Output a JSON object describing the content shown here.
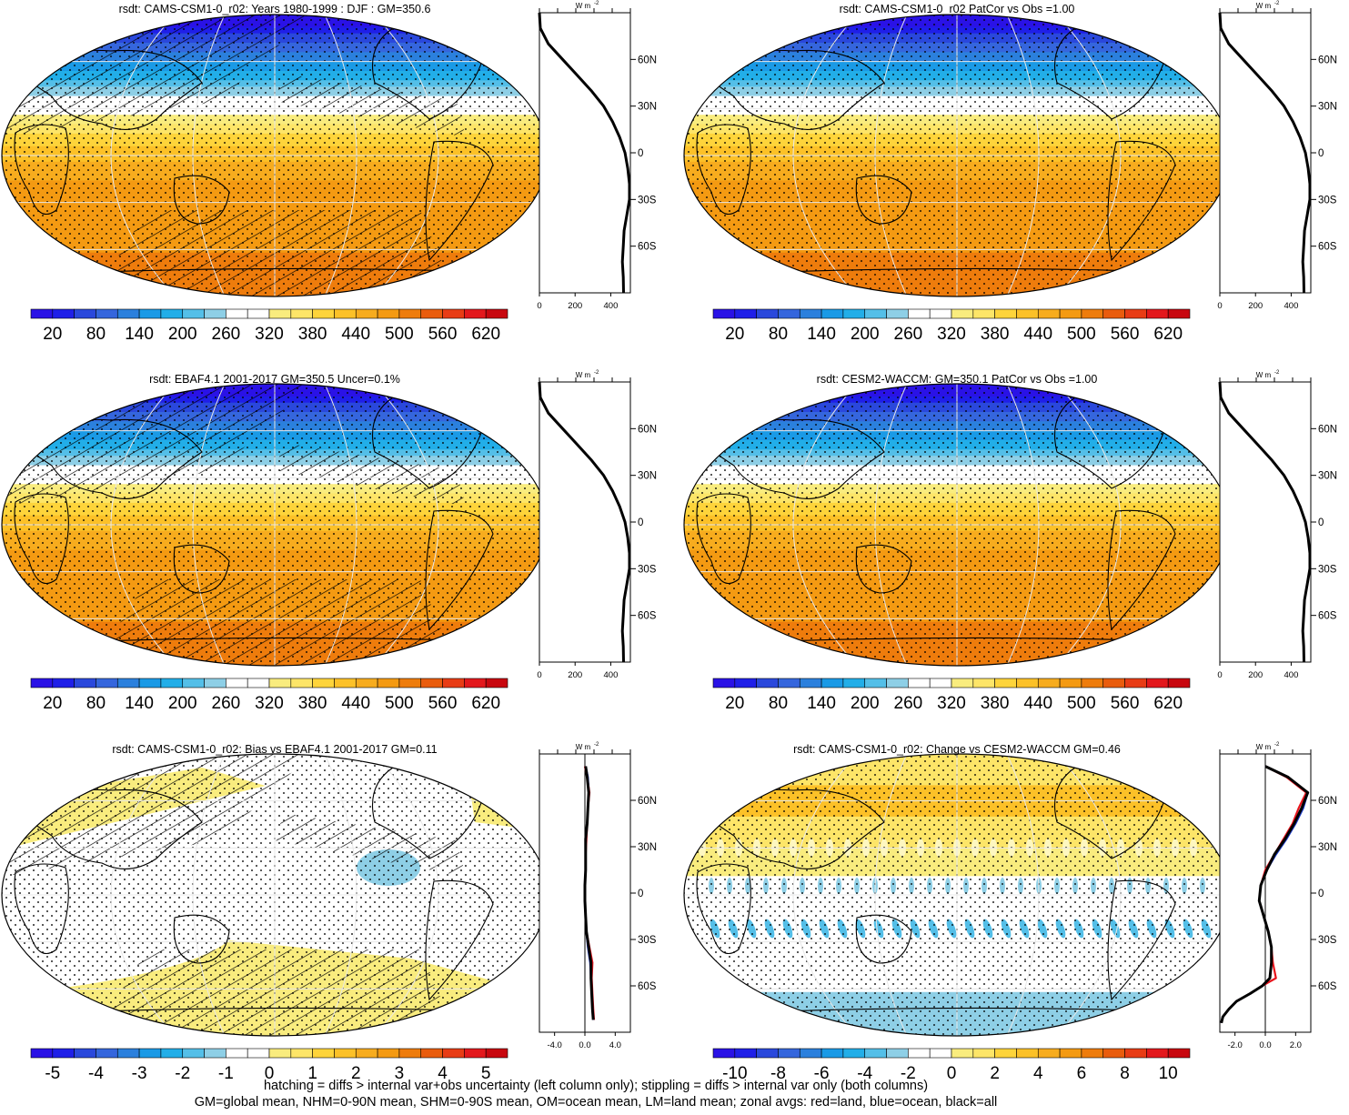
{
  "chart_data": [
    {
      "type": "heatmap",
      "title": "rsdt: CAMS-CSM1-0_r02: Years 1980-1999 : DJF : GM=350.6",
      "colorbar_ticks": [
        "20",
        "80",
        "140",
        "200",
        "260",
        "320",
        "380",
        "440",
        "500",
        "560",
        "620"
      ],
      "value_range": [
        -10,
        650
      ],
      "zonal_profile": {
        "type": "line",
        "units": "W m-2",
        "ylabels": [
          "60N",
          "30N",
          "0",
          "30S",
          "60S"
        ],
        "xticks": [
          "0",
          "200",
          "400"
        ],
        "xlim": [
          0,
          510
        ],
        "series": [
          {
            "name": "all",
            "color": "#000000",
            "lat": [
              90,
              80,
              70,
              60,
              50,
              40,
              30,
              20,
              10,
              0,
              -10,
              -20,
              -30,
              -40,
              -50,
              -60,
              -70,
              -80,
              -90
            ],
            "values": [
              0,
              5,
              50,
              130,
              210,
              290,
              360,
              410,
              450,
              480,
              495,
              505,
              505,
              490,
              475,
              470,
              465,
              470,
              472
            ]
          }
        ]
      }
    },
    {
      "type": "heatmap",
      "title": "rsdt: CAMS-CSM1-0_r02 PatCor vs Obs =1.00",
      "colorbar_ticks": [
        "20",
        "80",
        "140",
        "200",
        "260",
        "320",
        "380",
        "440",
        "500",
        "560",
        "620"
      ],
      "value_range": [
        -10,
        650
      ],
      "zonal_profile": {
        "type": "line",
        "units": "W m-2",
        "ylabels": [
          "60N",
          "30N",
          "0",
          "30S",
          "60S"
        ],
        "xticks": [
          "0",
          "200",
          "400"
        ],
        "xlim": [
          0,
          510
        ],
        "series": [
          {
            "name": "all",
            "color": "#000000",
            "lat": [
              90,
              80,
              70,
              60,
              50,
              40,
              30,
              20,
              10,
              0,
              -10,
              -20,
              -30,
              -40,
              -50,
              -60,
              -70,
              -80,
              -90
            ],
            "values": [
              0,
              5,
              50,
              130,
              210,
              290,
              360,
              410,
              450,
              480,
              495,
              505,
              505,
              490,
              475,
              470,
              465,
              470,
              472
            ]
          }
        ]
      }
    },
    {
      "type": "heatmap",
      "title": "rsdt: EBAF4.1 2001-2017 GM=350.5 Uncer=0.1%",
      "colorbar_ticks": [
        "20",
        "80",
        "140",
        "200",
        "260",
        "320",
        "380",
        "440",
        "500",
        "560",
        "620"
      ],
      "value_range": [
        -10,
        650
      ],
      "zonal_profile": {
        "type": "line",
        "units": "W m-2",
        "ylabels": [
          "60N",
          "30N",
          "0",
          "30S",
          "60S"
        ],
        "xticks": [
          "0",
          "200",
          "400"
        ],
        "xlim": [
          0,
          510
        ],
        "series": [
          {
            "name": "all",
            "color": "#000000",
            "lat": [
              90,
              80,
              70,
              60,
              50,
              40,
              30,
              20,
              10,
              0,
              -10,
              -20,
              -30,
              -40,
              -50,
              -60,
              -70,
              -80,
              -90
            ],
            "values": [
              0,
              5,
              50,
              130,
              210,
              290,
              360,
              410,
              450,
              480,
              495,
              505,
              505,
              490,
              475,
              470,
              465,
              470,
              472
            ]
          }
        ]
      }
    },
    {
      "type": "heatmap",
      "title": "rsdt: CESM2-WACCM: GM=350.1 PatCor vs Obs =1.00",
      "colorbar_ticks": [
        "20",
        "80",
        "140",
        "200",
        "260",
        "320",
        "380",
        "440",
        "500",
        "560",
        "620"
      ],
      "value_range": [
        -10,
        650
      ],
      "zonal_profile": {
        "type": "line",
        "units": "W m-2",
        "ylabels": [
          "60N",
          "30N",
          "0",
          "30S",
          "60S"
        ],
        "xticks": [
          "0",
          "200",
          "400"
        ],
        "xlim": [
          0,
          510
        ],
        "series": [
          {
            "name": "all",
            "color": "#000000",
            "lat": [
              90,
              80,
              70,
              60,
              50,
              40,
              30,
              20,
              10,
              0,
              -10,
              -20,
              -30,
              -40,
              -50,
              -60,
              -70,
              -80,
              -90
            ],
            "values": [
              0,
              5,
              50,
              130,
              210,
              290,
              360,
              410,
              450,
              480,
              495,
              505,
              505,
              490,
              475,
              470,
              465,
              470,
              472
            ]
          }
        ]
      }
    },
    {
      "type": "heatmap",
      "title": "rsdt: CAMS-CSM1-0_r02: Bias vs EBAF4.1 2001-2017 GM=0.11",
      "colorbar_ticks": [
        "-5",
        "-4",
        "-3",
        "-2",
        "-1",
        "0",
        "1",
        "2",
        "3",
        "4",
        "5"
      ],
      "value_range": [
        -5.5,
        5.5
      ],
      "zonal_profile": {
        "type": "line",
        "units": "W m-2",
        "ylabels": [
          "60N",
          "30N",
          "0",
          "30S",
          "60S"
        ],
        "xticks": [
          "-4.0",
          "0.0",
          "4.0"
        ],
        "xlim": [
          -6,
          6
        ],
        "series": [
          {
            "name": "land",
            "color": "#e8141c",
            "lat": [
              82,
              75,
              65,
              55,
              45,
              35,
              25,
              15,
              5,
              -5,
              -15,
              -25,
              -35,
              -45,
              -55,
              -65,
              -75,
              -82
            ],
            "values": [
              0.0,
              0.3,
              0.6,
              0.4,
              0.3,
              0.2,
              0.1,
              0.1,
              0.0,
              0.0,
              0.1,
              0.2,
              0.6,
              1.0,
              0.9,
              1.0,
              1.1,
              1.2
            ]
          },
          {
            "name": "ocean",
            "color": "#1c3cc8",
            "lat": [
              82,
              75,
              65,
              55,
              45,
              35,
              25,
              15,
              5,
              -5,
              -15,
              -25,
              -35,
              -45,
              -55,
              -65,
              -75,
              -82
            ],
            "values": [
              0.1,
              0.4,
              0.5,
              0.4,
              0.3,
              0.1,
              0.1,
              0.1,
              0.0,
              0.0,
              0.1,
              0.2,
              0.4,
              0.7,
              0.8,
              0.9,
              1.0,
              1.1
            ]
          },
          {
            "name": "all",
            "color": "#000000",
            "lat": [
              82,
              75,
              65,
              55,
              45,
              35,
              25,
              15,
              5,
              -5,
              -15,
              -25,
              -35,
              -45,
              -55,
              -65,
              -75,
              -82
            ],
            "values": [
              0.1,
              0.3,
              0.5,
              0.4,
              0.3,
              0.1,
              0.1,
              0.1,
              0.0,
              0.0,
              0.1,
              0.2,
              0.5,
              0.8,
              0.8,
              0.9,
              1.0,
              1.1
            ]
          }
        ]
      }
    },
    {
      "type": "heatmap",
      "title": "rsdt: CAMS-CSM1-0_r02: Change vs CESM2-WACCM GM=0.46",
      "colorbar_ticks": [
        "-10",
        "-8",
        "-6",
        "-4",
        "-2",
        "0",
        "2",
        "4",
        "6",
        "8",
        "10"
      ],
      "value_range": [
        -11,
        11
      ],
      "zonal_profile": {
        "type": "line",
        "units": "W m-2",
        "ylabels": [
          "60N",
          "30N",
          "0",
          "30S",
          "60S"
        ],
        "xticks": [
          "-2.0",
          "0.0",
          "2.0"
        ],
        "xlim": [
          -3,
          3
        ],
        "series": [
          {
            "name": "land",
            "color": "#e8141c",
            "lat": [
              82,
              75,
              65,
              55,
              45,
              35,
              25,
              15,
              5,
              -5,
              -15,
              -25,
              -35,
              -45,
              -55,
              -60,
              -65,
              -70,
              -75,
              -80,
              -84
            ],
            "values": [
              0.0,
              1.4,
              2.7,
              2.2,
              1.8,
              1.2,
              0.6,
              0.0,
              -0.3,
              -0.4,
              -0.1,
              0.2,
              0.4,
              0.5,
              0.7,
              -0.2,
              -1.0,
              -1.9,
              -2.4,
              -2.8,
              -2.9
            ]
          },
          {
            "name": "ocean",
            "color": "#1c3cc8",
            "lat": [
              82,
              75,
              65,
              55,
              45,
              35,
              25,
              15,
              5,
              -5,
              -15,
              -25,
              -35,
              -45,
              -55,
              -60,
              -65,
              -70,
              -75,
              -80,
              -84
            ],
            "values": [
              0.0,
              1.5,
              2.8,
              2.5,
              2.0,
              1.4,
              0.7,
              0.1,
              -0.3,
              -0.4,
              -0.1,
              0.2,
              0.4,
              0.4,
              0.3,
              -0.2,
              -1.0,
              -1.9,
              -2.4,
              -2.8,
              -2.9
            ]
          },
          {
            "name": "all",
            "color": "#000000",
            "lat": [
              82,
              75,
              65,
              55,
              45,
              35,
              25,
              15,
              5,
              -5,
              -15,
              -25,
              -35,
              -45,
              -55,
              -60,
              -65,
              -70,
              -75,
              -80,
              -84
            ],
            "values": [
              0.0,
              1.5,
              2.8,
              2.4,
              1.9,
              1.3,
              0.6,
              0.1,
              -0.3,
              -0.4,
              -0.1,
              0.2,
              0.4,
              0.4,
              0.3,
              -0.2,
              -1.0,
              -1.9,
              -2.4,
              -2.8,
              -2.9
            ]
          }
        ]
      }
    }
  ],
  "footer": {
    "line1": "hatching = diffs > internal var+obs uncertainty (left column only); stippling = diffs > internal var only (both columns)",
    "line2": "GM=global mean, NHM=0-90N mean, SHM=0-90S mean, OM=ocean mean, LM=land mean; zonal avgs: red=land, blue=ocean, black=all"
  },
  "colors": {
    "palette": [
      "#2a12e6",
      "#1f1fe8",
      "#2a48dc",
      "#3566dd",
      "#2b80dd",
      "#1a9ae6",
      "#22aee8",
      "#54bfe8",
      "#8ecfe6",
      "#ffffff",
      "#ffffff",
      "#f9ec7e",
      "#fde568",
      "#fed43b",
      "#fcc128",
      "#f7ac1e",
      "#f49a12",
      "#ee7c0c",
      "#e95c0d",
      "#e83c15",
      "#e3181c",
      "#c8070f"
    ]
  }
}
